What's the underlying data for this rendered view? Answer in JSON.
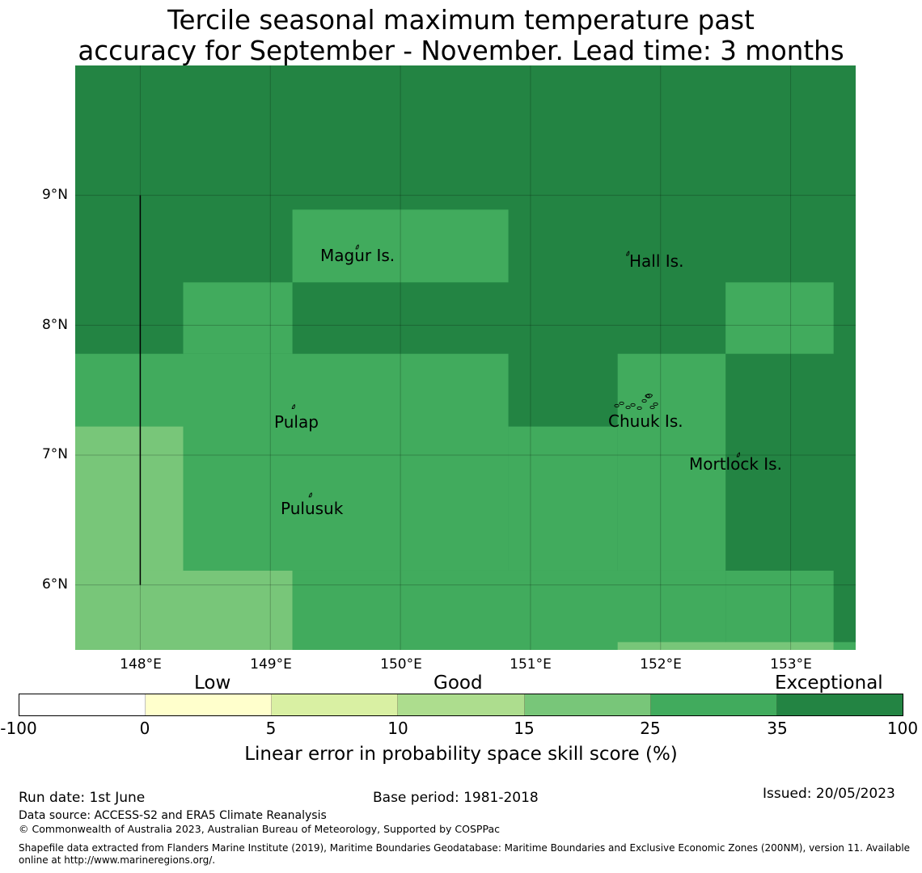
{
  "title": {
    "line1": "Tercile seasonal maximum temperature past",
    "line2": "accuracy for September - November. Lead time: 3 months"
  },
  "map": {
    "lon_range": [
      147.5,
      153.5
    ],
    "lat_range": [
      5.5,
      10.0
    ],
    "lon_ticks": [
      {
        "value": 148,
        "label": "148°E"
      },
      {
        "value": 149,
        "label": "149°E"
      },
      {
        "value": 150,
        "label": "150°E"
      },
      {
        "value": 151,
        "label": "151°E"
      },
      {
        "value": 152,
        "label": "152°E"
      },
      {
        "value": 153,
        "label": "153°E"
      }
    ],
    "lat_ticks": [
      {
        "value": 9,
        "label": "9°N"
      },
      {
        "value": 8,
        "label": "8°N"
      },
      {
        "value": 7,
        "label": "7°N"
      },
      {
        "value": 6,
        "label": "6°N"
      }
    ],
    "grid_lines": true,
    "category_colors": {
      "c15_25": "#78c679",
      "c25_35": "#41ab5d",
      "c35_100": "#238443"
    },
    "cells": [
      {
        "lon": [
          147.5,
          153.5
        ],
        "lat": [
          5.5,
          10.0
        ],
        "category": "c35_100"
      },
      {
        "lon": [
          149.17,
          150.83
        ],
        "lat": [
          8.33,
          8.89
        ],
        "category": "c25_35"
      },
      {
        "lon": [
          148.33,
          149.17
        ],
        "lat": [
          7.78,
          8.33
        ],
        "category": "c25_35"
      },
      {
        "lon": [
          152.5,
          153.33
        ],
        "lat": [
          7.78,
          8.33
        ],
        "category": "c25_35"
      },
      {
        "lon": [
          147.5,
          150.83
        ],
        "lat": [
          6.11,
          7.78
        ],
        "category": "c25_35"
      },
      {
        "lon": [
          150.83,
          151.67
        ],
        "lat": [
          6.11,
          7.22
        ],
        "category": "c25_35"
      },
      {
        "lon": [
          151.67,
          152.5
        ],
        "lat": [
          6.11,
          7.78
        ],
        "category": "c25_35"
      },
      {
        "lon": [
          149.17,
          152.5
        ],
        "lat": [
          5.5,
          6.11
        ],
        "category": "c25_35"
      },
      {
        "lon": [
          152.5,
          153.33
        ],
        "lat": [
          5.5,
          6.11
        ],
        "category": "c25_35"
      },
      {
        "lon": [
          153.33,
          153.5
        ],
        "lat": [
          5.5,
          5.56
        ],
        "category": "c25_35"
      },
      {
        "lon": [
          147.5,
          148.33
        ],
        "lat": [
          6.11,
          7.22
        ],
        "category": "c15_25"
      },
      {
        "lon": [
          147.5,
          149.17
        ],
        "lat": [
          5.5,
          6.11
        ],
        "category": "c15_25"
      },
      {
        "lon": [
          151.67,
          153.33
        ],
        "lat": [
          5.5,
          5.56
        ],
        "category": "c15_25"
      }
    ],
    "boundary_line": {
      "lon": 148.0,
      "lat": [
        6.0,
        9.0
      ]
    },
    "islands": [
      {
        "name": "Magur Is.",
        "label_lon": 149.38,
        "label_lat": 8.55,
        "shape_lon": 149.67,
        "shape_lat": 8.6
      },
      {
        "name": "Hall Is.",
        "label_lon": 151.75,
        "label_lat": 8.5,
        "shape_lon": 151.75,
        "shape_lat": 8.55
      },
      {
        "name": "Pulap",
        "label_lon": 149.03,
        "label_lat": 7.26,
        "shape_lon": 149.18,
        "shape_lat": 7.37
      },
      {
        "name": "Chuuk Is.",
        "label_lon": 151.6,
        "label_lat": 7.27,
        "shape_lon": 151.8,
        "shape_lat": 7.38
      },
      {
        "name": "Mortlock Is.",
        "label_lon": 152.22,
        "label_lat": 6.94,
        "shape_lon": 152.6,
        "shape_lat": 7.0
      },
      {
        "name": "Pulusuk",
        "label_lon": 149.08,
        "label_lat": 6.6,
        "shape_lon": 149.31,
        "shape_lat": 6.69
      }
    ]
  },
  "colorbar": {
    "categories": [
      {
        "label": "Low",
        "value": 0
      },
      {
        "label": "Good",
        "value": 15
      },
      {
        "label": "Exceptional",
        "value": 100
      }
    ],
    "ticks": [
      "-100",
      "0",
      "5",
      "10",
      "15",
      "25",
      "35",
      "100"
    ],
    "colors": [
      "#ffffff",
      "#ffffcc",
      "#d9f0a3",
      "#addd8e",
      "#78c679",
      "#41ab5d",
      "#238443"
    ],
    "label": "Linear error in probability space skill score (%)"
  },
  "footer": {
    "run_date": "Run date: 1st June",
    "base_period": "Base period: 1981-2018",
    "issued": "Issued: 20/05/2023",
    "data_source": "Data source: ACCESS-S2 and ERA5 Climate Reanalysis",
    "copyright": "© Commonwealth of Australia 2023, Australian Bureau of Meteorology, Supported by COSPPac",
    "shapefile_line1": "Shapefile data extracted from Flanders Marine Institute (2019), Maritime Boundaries Geodatabase: Maritime Boundaries and Exclusive Economic Zones (200NM), version 11. Available",
    "shapefile_line2": "online at http://www.marineregions.org/."
  }
}
